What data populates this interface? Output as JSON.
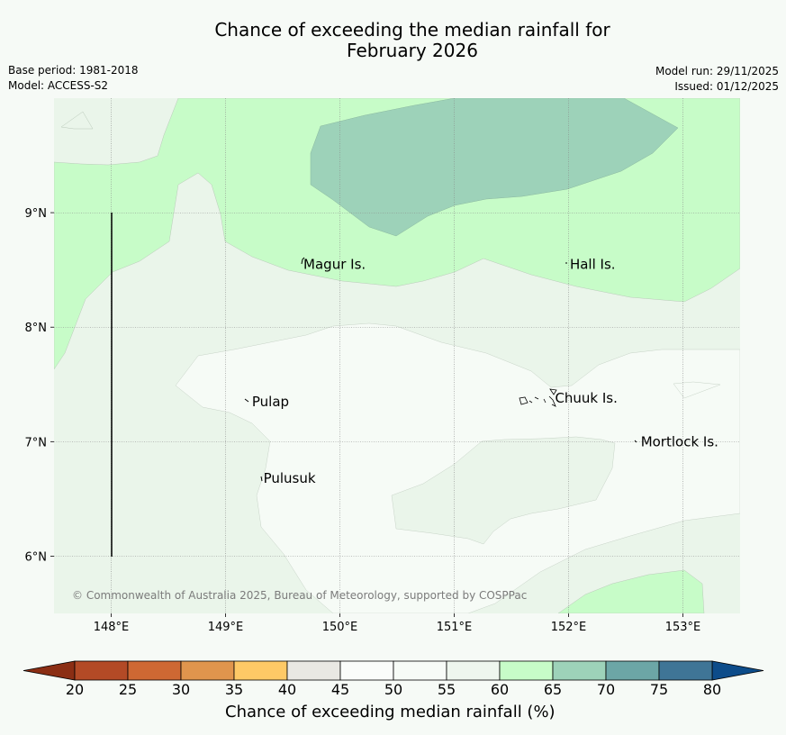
{
  "title": {
    "line1": "Chance of exceeding the median rainfall for",
    "line2": "February 2026"
  },
  "info_left": {
    "base_period": "Base period: 1981-2018",
    "model": "Model: ACCESS-S2"
  },
  "info_right": {
    "model_run": "Model run: 29/11/2025",
    "issued": "Issued: 01/12/2025"
  },
  "map": {
    "longitude_ticks": [
      "148°E",
      "149°E",
      "150°E",
      "151°E",
      "152°E",
      "153°E"
    ],
    "latitude_ticks": [
      "9°N",
      "8°N",
      "7°N",
      "6°N"
    ],
    "extent": {
      "lon": [
        147.5,
        153.5
      ],
      "lat": [
        5.5,
        10.0
      ]
    },
    "places": [
      {
        "name": "Magur Is.",
        "lon": 149.65,
        "lat": 8.55
      },
      {
        "name": "Hall Is.",
        "lon": 151.98,
        "lat": 8.55
      },
      {
        "name": "Pulap",
        "lon": 149.2,
        "lat": 7.35
      },
      {
        "name": "Chuuk Is.",
        "lon": 151.85,
        "lat": 7.38
      },
      {
        "name": "Mortlock Is.",
        "lon": 152.6,
        "lat": 7.0
      },
      {
        "name": "Pulusuk",
        "lon": 149.3,
        "lat": 6.68
      }
    ],
    "copyright": "© Commonwealth of Australia 2025, Bureau of Meteorology, supported by COSPPac",
    "zone_colors": {
      "z55_60": "#eaf5ea",
      "z50_55": "#f6fbf6",
      "z60_65": "#c7fcc8",
      "z65_70": "#9dd2b9"
    }
  },
  "colorbar": {
    "label": "Chance of exceeding median rainfall (%)",
    "ticks": [
      "20",
      "25",
      "30",
      "35",
      "40",
      "45",
      "50",
      "55",
      "60",
      "65",
      "70",
      "75",
      "80"
    ],
    "colors": [
      "#b34a26",
      "#ce6833",
      "#e0954d",
      "#fec966",
      "#e9e8e3",
      "#fafcfa",
      "#f7fbf7",
      "#eef6ee",
      "#c7fcc8",
      "#9dd2b9",
      "#6ca6a6",
      "#3f7596"
    ],
    "under_color": "#8b2e14",
    "over_color": "#0d4c8a"
  }
}
